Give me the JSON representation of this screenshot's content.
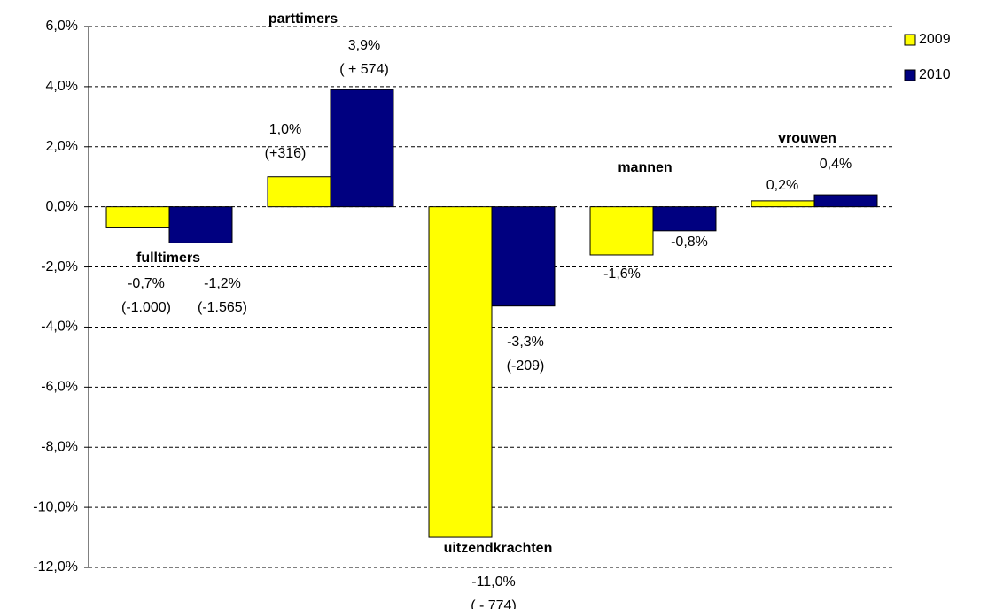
{
  "chart_data": {
    "type": "bar",
    "categories": [
      "fulltimers",
      "parttimers",
      "uitzendkrachten",
      "mannen",
      "vrouwen"
    ],
    "series": [
      {
        "name": "2009",
        "color": "#ffff00",
        "values": [
          -0.7,
          1.0,
          -11.0,
          -1.6,
          0.2
        ],
        "value_labels": [
          "-0,7%",
          "1,0%",
          "-11,0%",
          "-1,6%",
          "0,2%"
        ],
        "change_labels": [
          "(-1.000)",
          "(+316)",
          "( - 774)",
          null,
          null
        ]
      },
      {
        "name": "2010",
        "color": "#000080",
        "values": [
          -1.2,
          3.9,
          -3.3,
          -0.8,
          0.4
        ],
        "value_labels": [
          "-1,2%",
          "3,9%",
          "-3,3%",
          "-0,8%",
          "0,4%"
        ],
        "change_labels": [
          "(-1.565)",
          "( + 574)",
          "(-209)",
          null,
          null
        ]
      }
    ],
    "ylim": [
      -12,
      6
    ],
    "yticks": [
      {
        "value": -12,
        "label": "-12,0%"
      },
      {
        "value": -10,
        "label": "-10,0%"
      },
      {
        "value": -8,
        "label": "-8,0%"
      },
      {
        "value": -6,
        "label": "-6,0%"
      },
      {
        "value": -4,
        "label": "-4,0%"
      },
      {
        "value": -2,
        "label": "-2,0%"
      },
      {
        "value": 0,
        "label": "0,0%"
      },
      {
        "value": 2,
        "label": "2,0%"
      },
      {
        "value": 4,
        "label": "4,0%"
      },
      {
        "value": 6,
        "label": "6,0%"
      }
    ],
    "grid": true,
    "legend": "right"
  }
}
